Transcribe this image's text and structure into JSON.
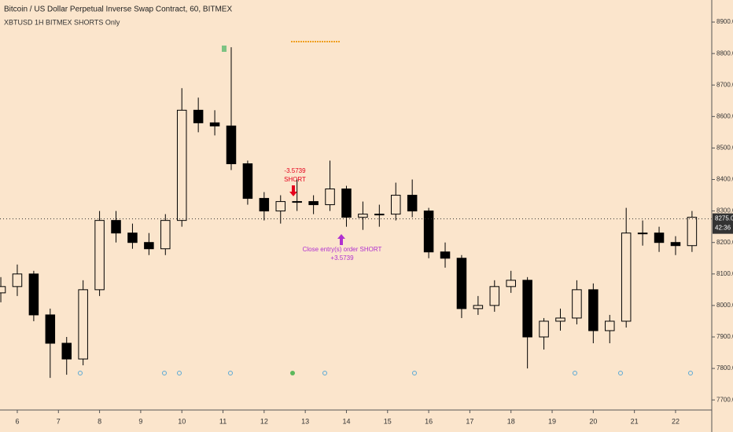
{
  "chart_data": {
    "type": "candlestick",
    "title": "Bitcoin / US Dollar Perpetual Inverse Swap Contract, 60, BITMEX",
    "subtitle": "XBTUSD 1H BITMEX SHORTS Only",
    "x": [
      5.6,
      6.0,
      6.4,
      6.8,
      7.2,
      7.6,
      8.0,
      8.4,
      8.8,
      9.2,
      9.6,
      10.0,
      10.4,
      10.8,
      11.2,
      11.6,
      12.0,
      12.4,
      12.8,
      13.2,
      13.6,
      14.0,
      14.4,
      14.8,
      15.2,
      15.6,
      16.0,
      16.4,
      16.8,
      17.2,
      17.6,
      18.0,
      18.4,
      18.8,
      19.2,
      19.6,
      20.0,
      20.4,
      20.8,
      21.2,
      21.6,
      22.0,
      22.4
    ],
    "open": [
      8040,
      8060,
      8100,
      7970,
      7880,
      7830,
      8050,
      8270,
      8230,
      8200,
      8180,
      8270,
      8620,
      8580,
      8570,
      8450,
      8340,
      8300,
      8330,
      8330,
      8320,
      8370,
      8280,
      8290,
      8290,
      8350,
      8300,
      8170,
      8150,
      7990,
      8000,
      8060,
      8080,
      7900,
      7950,
      7960,
      8050,
      7920,
      7950,
      8230,
      8230,
      8200,
      8190
    ],
    "high": [
      8090,
      8130,
      8110,
      7990,
      7900,
      8080,
      8300,
      8300,
      8260,
      8230,
      8290,
      8690,
      8660,
      8620,
      8820,
      8460,
      8360,
      8350,
      8400,
      8350,
      8460,
      8380,
      8330,
      8320,
      8390,
      8400,
      8310,
      8200,
      8160,
      8030,
      8080,
      8110,
      8090,
      7960,
      7990,
      8080,
      8070,
      7970,
      8310,
      8270,
      8250,
      8220,
      8300
    ],
    "low": [
      8010,
      8030,
      7950,
      7770,
      7780,
      7810,
      8030,
      8200,
      8180,
      8160,
      8160,
      8250,
      8550,
      8540,
      8430,
      8320,
      8270,
      8260,
      8300,
      8290,
      8300,
      8250,
      8240,
      8250,
      8270,
      8280,
      8150,
      8120,
      7960,
      7970,
      7980,
      8040,
      7800,
      7860,
      7920,
      7940,
      7880,
      7880,
      7930,
      8190,
      8170,
      8160,
      8170
    ],
    "close": [
      8060,
      8100,
      7970,
      7880,
      7830,
      8050,
      8270,
      8230,
      8200,
      8180,
      8270,
      8620,
      8580,
      8570,
      8450,
      8340,
      8300,
      8330,
      8330,
      8320,
      8370,
      8280,
      8290,
      8290,
      8350,
      8300,
      8170,
      8150,
      7990,
      8000,
      8060,
      8080,
      7900,
      7950,
      7960,
      8050,
      7920,
      7950,
      8230,
      8230,
      8200,
      8190,
      8280
    ],
    "up_color": "#fbe5cc",
    "down_color": "#000000",
    "xlim": [
      5.58,
      22.88
    ],
    "xticks": [
      6,
      7,
      8,
      9,
      10,
      11,
      12,
      13,
      14,
      15,
      16,
      17,
      18,
      19,
      20,
      21,
      22
    ],
    "ylim": [
      7668,
      8970
    ],
    "yticks": [
      {
        "value": 7700,
        "label": "7700.0"
      },
      {
        "value": 7800,
        "label": "7800.0"
      },
      {
        "value": 7900,
        "label": "7900.0"
      },
      {
        "value": 8000,
        "label": "8000.0"
      },
      {
        "value": 8100,
        "label": "8100.0"
      },
      {
        "value": 8200,
        "label": "8200.0"
      },
      {
        "value": 8300,
        "label": "8300.0"
      },
      {
        "value": 8400,
        "label": "8400.0"
      },
      {
        "value": 8500,
        "label": "8500.0"
      },
      {
        "value": 8600,
        "label": "8600.0"
      },
      {
        "value": 8700,
        "label": "8700.0"
      },
      {
        "value": 8800,
        "label": "8800.0"
      },
      {
        "value": 8900,
        "label": "8900.0"
      }
    ],
    "last_price": {
      "value": 8275,
      "label": "8275.0"
    },
    "countdown": "42:36",
    "annotations": [
      "-3.5739",
      "SHORT",
      "Close entry(s) order SHORT",
      "+3.5739"
    ]
  }
}
